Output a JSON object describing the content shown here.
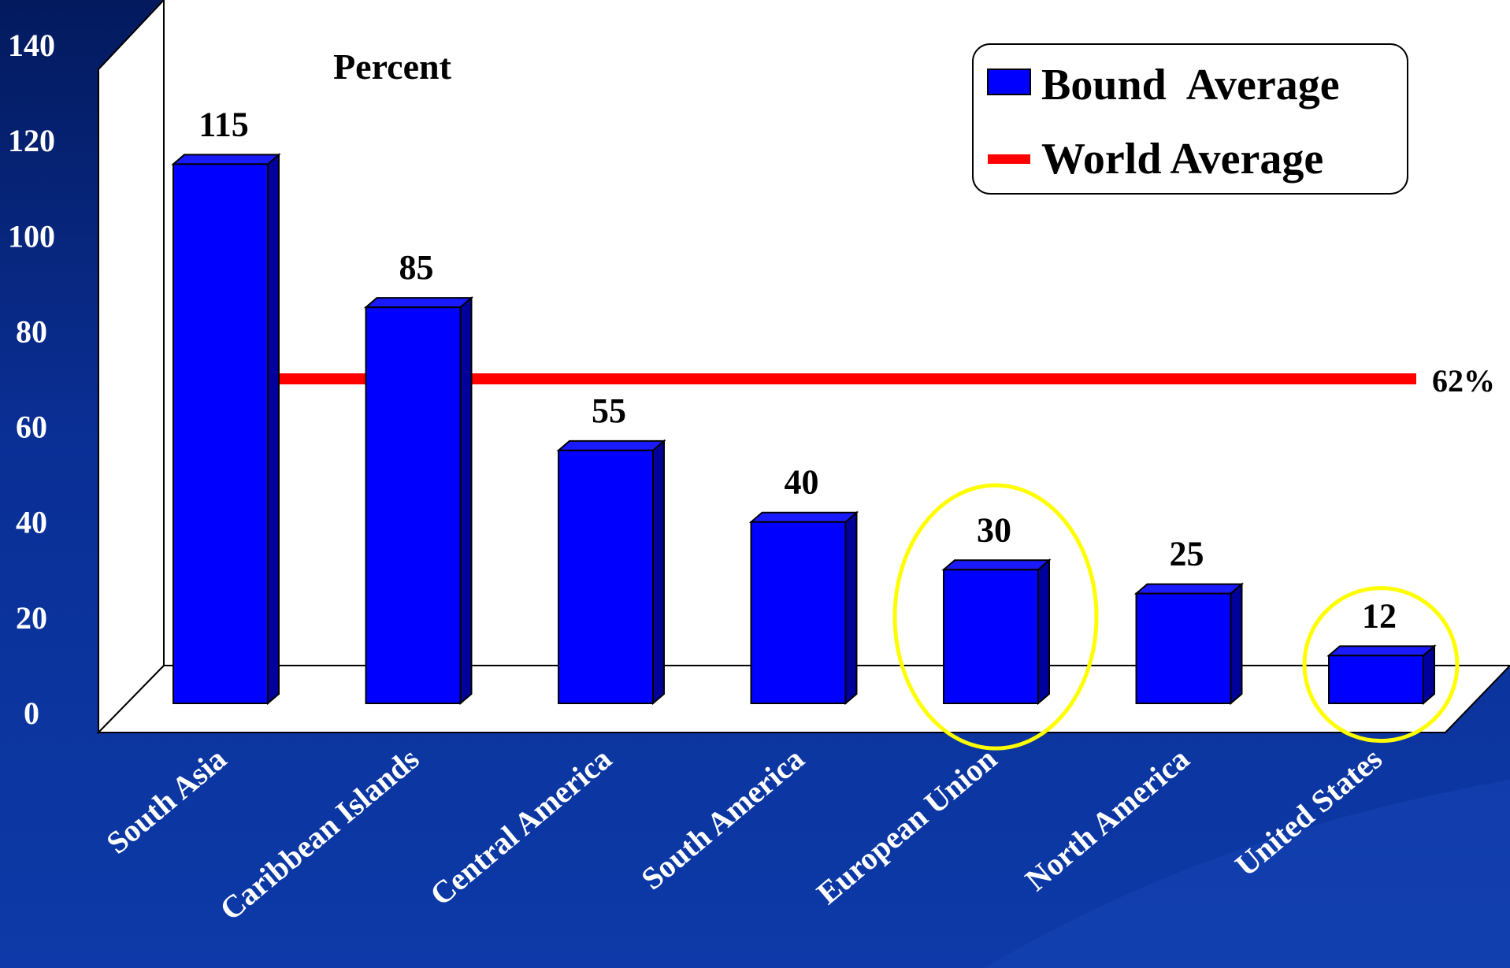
{
  "chart_data": {
    "type": "bar",
    "title": "",
    "ylabel": "Percent",
    "xlabel": "",
    "ylim": [
      0,
      140
    ],
    "yticks": [
      0,
      20,
      40,
      60,
      80,
      100,
      120,
      140
    ],
    "categories": [
      "South Asia",
      "Caribbean Islands",
      "Central America",
      "South America",
      "European Union",
      "North America",
      "United States"
    ],
    "series": [
      {
        "name": "Bound  Average",
        "values": [
          115,
          85,
          55,
          40,
          30,
          25,
          12
        ],
        "color": "#0000ff"
      }
    ],
    "data_labels": [
      "115",
      "85",
      "55",
      "40",
      "30",
      "25",
      "12"
    ],
    "reference_line": {
      "name": "World Average",
      "label": "62%",
      "color": "#ff0000"
    },
    "highlighted_categories": [
      "European Union",
      "United States"
    ],
    "highlight_color": "#ffff00",
    "legend": {
      "position": "top-right",
      "entries": [
        "Bound  Average",
        "World Average"
      ]
    },
    "grid": false
  }
}
